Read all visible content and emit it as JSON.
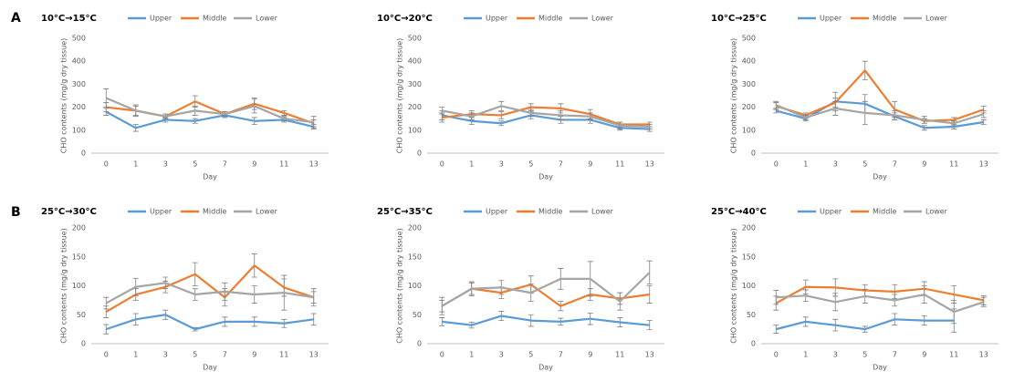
{
  "panel_labels": [
    "A",
    "B"
  ],
  "chart_data": [
    {
      "type": "line",
      "title": "10°C→15°C",
      "x_label": "Day",
      "y_label": "CHO contents (mg/g dry tissue)",
      "categories": [
        "0",
        "1",
        "3",
        "5",
        "7",
        "9",
        "11",
        "13"
      ],
      "ylim": [
        0,
        500
      ],
      "yticks": [
        0,
        100,
        200,
        300,
        400,
        500
      ],
      "grid": false,
      "series": [
        {
          "name": "Upper",
          "color": "#5b9bd5",
          "values": [
            180,
            110,
            145,
            140,
            165,
            140,
            145,
            115
          ],
          "errors": [
            15,
            15,
            10,
            10,
            10,
            15,
            10,
            10
          ]
        },
        {
          "name": "Middle",
          "color": "#ed7d31",
          "values": [
            200,
            185,
            160,
            225,
            170,
            215,
            175,
            130
          ],
          "errors": [
            20,
            20,
            10,
            25,
            10,
            25,
            10,
            15
          ]
        },
        {
          "name": "Lower",
          "color": "#a5a5a5",
          "values": [
            240,
            185,
            160,
            185,
            170,
            205,
            150,
            135
          ],
          "errors": [
            40,
            25,
            10,
            20,
            10,
            30,
            10,
            25
          ]
        }
      ]
    },
    {
      "type": "line",
      "title": "10°C→20°C",
      "x_label": "Day",
      "y_label": "CHO contents (mg/g dry tissue)",
      "categories": [
        "0",
        "1",
        "3",
        "5",
        "7",
        "9",
        "11",
        "13"
      ],
      "ylim": [
        0,
        500
      ],
      "yticks": [
        0,
        100,
        200,
        300,
        400,
        500
      ],
      "grid": false,
      "series": [
        {
          "name": "Upper",
          "color": "#5b9bd5",
          "values": [
            165,
            140,
            130,
            165,
            145,
            145,
            110,
            105
          ],
          "errors": [
            20,
            15,
            10,
            15,
            15,
            15,
            10,
            10
          ]
        },
        {
          "name": "Middle",
          "color": "#ed7d31",
          "values": [
            155,
            170,
            165,
            200,
            195,
            170,
            125,
            125
          ],
          "errors": [
            20,
            15,
            15,
            15,
            20,
            20,
            10,
            10
          ]
        },
        {
          "name": "Lower",
          "color": "#a5a5a5",
          "values": [
            185,
            160,
            205,
            175,
            165,
            160,
            120,
            115
          ],
          "errors": [
            15,
            15,
            20,
            15,
            20,
            15,
            15,
            10
          ]
        }
      ]
    },
    {
      "type": "line",
      "title": "10°C→25°C",
      "x_label": "Day",
      "y_label": "CHO contents (mg/g dry tissue)",
      "categories": [
        "0",
        "1",
        "3",
        "5",
        "7",
        "9",
        "11",
        "13"
      ],
      "ylim": [
        0,
        500
      ],
      "yticks": [
        0,
        100,
        200,
        300,
        400,
        500
      ],
      "grid": false,
      "series": [
        {
          "name": "Upper",
          "color": "#5b9bd5",
          "values": [
            185,
            150,
            225,
            215,
            160,
            110,
            115,
            135
          ],
          "errors": [
            10,
            10,
            40,
            40,
            15,
            10,
            10,
            10
          ]
        },
        {
          "name": "Middle",
          "color": "#ed7d31",
          "values": [
            205,
            165,
            220,
            360,
            190,
            140,
            145,
            190
          ],
          "errors": [
            15,
            10,
            20,
            40,
            35,
            10,
            10,
            15
          ]
        },
        {
          "name": "Lower",
          "color": "#a5a5a5",
          "values": [
            210,
            155,
            195,
            175,
            165,
            145,
            130,
            170
          ],
          "errors": [
            15,
            10,
            30,
            50,
            20,
            15,
            10,
            15
          ]
        }
      ]
    },
    {
      "type": "line",
      "title": "25°C→30°C",
      "x_label": "Day",
      "y_label": "CHO contents (mg/g dry tissue)",
      "categories": [
        "0",
        "1",
        "3",
        "5",
        "7",
        "9",
        "11",
        "13"
      ],
      "ylim": [
        0,
        200
      ],
      "yticks": [
        0,
        50,
        100,
        150,
        200
      ],
      "grid": false,
      "series": [
        {
          "name": "Upper",
          "color": "#5b9bd5",
          "values": [
            25,
            42,
            50,
            25,
            38,
            38,
            35,
            42
          ],
          "errors": [
            8,
            10,
            8,
            3,
            8,
            8,
            7,
            10
          ]
        },
        {
          "name": "Middle",
          "color": "#ed7d31",
          "values": [
            55,
            85,
            98,
            120,
            80,
            135,
            97,
            80
          ],
          "errors": [
            10,
            10,
            10,
            20,
            15,
            20,
            15,
            10
          ]
        },
        {
          "name": "Lower",
          "color": "#a5a5a5",
          "values": [
            70,
            98,
            105,
            85,
            90,
            85,
            88,
            80
          ],
          "errors": [
            10,
            15,
            10,
            10,
            15,
            15,
            30,
            15
          ]
        }
      ]
    },
    {
      "type": "line",
      "title": "25°C→35°C",
      "x_label": "Day",
      "y_label": "CHO contents (mg/g dry tissue)",
      "categories": [
        "0",
        "1",
        "3",
        "5",
        "7",
        "9",
        "11",
        "13"
      ],
      "ylim": [
        0,
        200
      ],
      "yticks": [
        0,
        50,
        100,
        150,
        200
      ],
      "grid": false,
      "series": [
        {
          "name": "Upper",
          "color": "#5b9bd5",
          "values": [
            38,
            32,
            48,
            40,
            38,
            43,
            37,
            32
          ],
          "errors": [
            7,
            5,
            8,
            10,
            6,
            10,
            8,
            8
          ]
        },
        {
          "name": "Middle",
          "color": "#ed7d31",
          "values": [
            65,
            95,
            88,
            102,
            65,
            85,
            78,
            85
          ],
          "errors": [
            10,
            12,
            10,
            15,
            8,
            10,
            10,
            15
          ]
        },
        {
          "name": "Lower",
          "color": "#a5a5a5",
          "values": [
            65,
            95,
            97,
            88,
            112,
            112,
            73,
            123
          ],
          "errors": [
            15,
            10,
            12,
            15,
            18,
            30,
            15,
            20
          ]
        }
      ]
    },
    {
      "type": "line",
      "title": "25°C→40°C",
      "x_label": "Day",
      "y_label": "CHO contents (mg/g dry tissue)",
      "categories": [
        "0",
        "1",
        "3",
        "5",
        "7",
        "9",
        "11",
        "13"
      ],
      "ylim": [
        0,
        200
      ],
      "yticks": [
        0,
        50,
        100,
        150,
        200
      ],
      "grid": false,
      "series": [
        {
          "name": "Upper",
          "color": "#5b9bd5",
          "values": [
            25,
            38,
            32,
            25,
            42,
            40,
            40,
            null
          ],
          "errors": [
            7,
            8,
            10,
            5,
            10,
            8,
            20,
            null
          ]
        },
        {
          "name": "Middle",
          "color": "#ed7d31",
          "values": [
            70,
            98,
            97,
            92,
            90,
            95,
            85,
            75
          ],
          "errors": [
            12,
            12,
            15,
            10,
            12,
            12,
            15,
            8
          ]
        },
        {
          "name": "Lower",
          "color": "#a5a5a5",
          "values": [
            80,
            83,
            72,
            82,
            75,
            85,
            55,
            72
          ],
          "errors": [
            12,
            10,
            15,
            12,
            10,
            15,
            20,
            8
          ]
        }
      ]
    }
  ]
}
